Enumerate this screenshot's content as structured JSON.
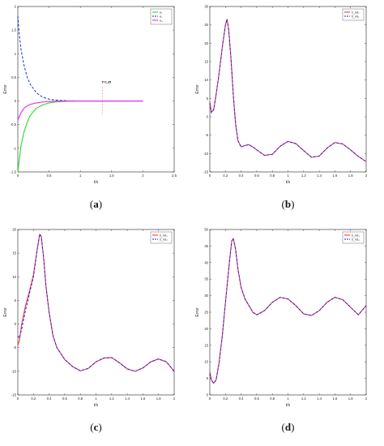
{
  "captions": [
    "a",
    "b",
    "c",
    "d"
  ],
  "chart_data": [
    {
      "type": "line",
      "panel": "a",
      "xlabel": "t/s",
      "ylabel": "Error",
      "xlim": [
        0,
        2.5
      ],
      "ylim": [
        -1.5,
        2
      ],
      "xticks": [
        "0",
        "0.5",
        "1",
        "1.5",
        "2",
        "2.5"
      ],
      "xtick_values": [
        0,
        0.5,
        1,
        1.5,
        2,
        2.5
      ],
      "yticks": [
        "-1.5",
        "-1",
        "-0.5",
        "0",
        "0.5",
        "1",
        "1.5",
        "2"
      ],
      "ytick_values": [
        -1.5,
        -1,
        -0.5,
        0,
        0.5,
        1,
        1.5,
        2
      ],
      "legend": [
        "e₁",
        "e₂",
        "e₃"
      ],
      "legend_position": "top-right",
      "annotation": {
        "text": "T=1.35",
        "x": 1.35
      },
      "series": [
        {
          "color": "#22dd22",
          "dash": "solid",
          "x": [
            0,
            0.05,
            0.1,
            0.15,
            0.2,
            0.3,
            0.4,
            0.5,
            0.6,
            0.8,
            1.0,
            1.2,
            1.5,
            2.0
          ],
          "y": [
            -1.5,
            -0.95,
            -0.65,
            -0.45,
            -0.3,
            -0.15,
            -0.08,
            -0.04,
            -0.02,
            -0.005,
            0,
            0,
            0,
            0
          ]
        },
        {
          "color": "#1530d8",
          "dash": "dashed",
          "x": [
            0,
            0.02,
            0.05,
            0.1,
            0.15,
            0.2,
            0.3,
            0.4,
            0.5,
            0.6,
            0.8,
            1.0,
            1.2,
            1.5,
            2.0
          ],
          "y": [
            1.8,
            1.45,
            1.1,
            0.75,
            0.5,
            0.35,
            0.17,
            0.08,
            0.04,
            0.02,
            0.005,
            0,
            0,
            0,
            0
          ]
        },
        {
          "color": "#ee22ee",
          "dash": "solid",
          "x": [
            0,
            0.05,
            0.1,
            0.15,
            0.2,
            0.3,
            0.4,
            0.5,
            0.6,
            0.8,
            1.0,
            1.5,
            2.0
          ],
          "y": [
            -0.4,
            -0.25,
            -0.15,
            -0.1,
            -0.07,
            -0.04,
            -0.02,
            -0.01,
            -0.005,
            0,
            0,
            0,
            0
          ]
        }
      ]
    },
    {
      "type": "line",
      "panel": "b",
      "xlabel": "t/s",
      "ylabel": "Error",
      "xlim": [
        0,
        2
      ],
      "ylim": [
        -15,
        30
      ],
      "xticks": [
        "0",
        "0.2",
        "0.4",
        "0.6",
        "0.8",
        "1",
        "1.2",
        "1.4",
        "1.6",
        "1.8",
        "2"
      ],
      "xtick_values": [
        0,
        0.2,
        0.4,
        0.6,
        0.8,
        1,
        1.2,
        1.4,
        1.6,
        1.8,
        2
      ],
      "yticks": [
        "-15",
        "-10",
        "-5",
        "0",
        "5",
        "10",
        "15",
        "20",
        "25",
        "30"
      ],
      "ytick_values": [
        -15,
        -10,
        -5,
        0,
        5,
        10,
        15,
        20,
        25,
        30
      ],
      "legend": [
        "ṡ_nd₁",
        "ṡ̂_nd₁"
      ],
      "legend_position": "top-right",
      "series": [
        {
          "color": "#ff3333",
          "dash": "solid",
          "x": [
            0,
            0.02,
            0.05,
            0.08,
            0.12,
            0.16,
            0.2,
            0.22,
            0.24,
            0.27,
            0.3,
            0.33,
            0.36,
            0.4,
            0.45,
            0.5,
            0.55,
            0.6,
            0.7,
            0.8,
            0.9,
            1.0,
            1.1,
            1.2,
            1.3,
            1.4,
            1.5,
            1.6,
            1.7,
            1.8,
            1.9,
            2.0
          ],
          "y": [
            4,
            1.2,
            2,
            6,
            12,
            19,
            25,
            26.5,
            24,
            16,
            6,
            -2,
            -6.5,
            -8.2,
            -7.8,
            -7.6,
            -8.2,
            -9,
            -10.5,
            -10.2,
            -8,
            -6.7,
            -7.3,
            -9.2,
            -11,
            -10.7,
            -8.5,
            -7,
            -7.4,
            -9,
            -10.8,
            -12.2
          ]
        },
        {
          "color": "#2222ee",
          "dash": "dashed",
          "x": [
            0,
            0.02,
            0.05,
            0.08,
            0.12,
            0.16,
            0.2,
            0.22,
            0.24,
            0.27,
            0.3,
            0.33,
            0.36,
            0.4,
            0.45,
            0.5,
            0.55,
            0.6,
            0.7,
            0.8,
            0.9,
            1.0,
            1.1,
            1.2,
            1.3,
            1.4,
            1.5,
            1.6,
            1.7,
            1.8,
            1.9,
            2.0
          ],
          "y": [
            3.8,
            1.1,
            1.9,
            6,
            12,
            19,
            25,
            26.5,
            24,
            16,
            6,
            -2,
            -6.5,
            -8.2,
            -7.8,
            -7.6,
            -8.2,
            -9,
            -10.5,
            -10.2,
            -8,
            -6.7,
            -7.3,
            -9.2,
            -11,
            -10.7,
            -8.5,
            -7,
            -7.4,
            -9,
            -10.8,
            -12.2
          ]
        }
      ]
    },
    {
      "type": "line",
      "panel": "c",
      "xlabel": "t/s",
      "ylabel": "Error",
      "xlim": [
        0,
        2
      ],
      "ylim": [
        -15,
        20
      ],
      "xticks": [
        "0",
        "0.2",
        "0.4",
        "0.6",
        "0.8",
        "1",
        "1.2",
        "1.4",
        "1.6",
        "1.8",
        "2"
      ],
      "xtick_values": [
        0,
        0.2,
        0.4,
        0.6,
        0.8,
        1,
        1.2,
        1.4,
        1.6,
        1.8,
        2
      ],
      "yticks": [
        "-15",
        "-10",
        "-5",
        "0",
        "5",
        "10",
        "15",
        "20"
      ],
      "ytick_values": [
        -15,
        -10,
        -5,
        0,
        5,
        10,
        15,
        20
      ],
      "legend": [
        "ṡ_nd₂",
        "ṡ̂_nd₂"
      ],
      "legend_position": "top-right",
      "series": [
        {
          "color": "#ff3333",
          "dash": "solid",
          "x": [
            0,
            0.02,
            0.05,
            0.1,
            0.15,
            0.2,
            0.25,
            0.28,
            0.3,
            0.33,
            0.36,
            0.4,
            0.45,
            0.5,
            0.6,
            0.7,
            0.8,
            0.9,
            1.0,
            1.1,
            1.2,
            1.3,
            1.4,
            1.5,
            1.6,
            1.7,
            1.8,
            1.9,
            2.0
          ],
          "y": [
            -4.5,
            -3.5,
            0,
            4,
            7,
            10.5,
            16,
            19,
            18.5,
            14,
            8,
            2.5,
            -2.5,
            -5,
            -7.5,
            -9,
            -9.9,
            -9.4,
            -8,
            -7.2,
            -7.1,
            -8.2,
            -9.5,
            -10,
            -9.3,
            -8,
            -7.4,
            -8,
            -10
          ]
        },
        {
          "color": "#2222ee",
          "dash": "dashed",
          "x": [
            0,
            0.02,
            0.05,
            0.1,
            0.15,
            0.2,
            0.25,
            0.28,
            0.3,
            0.33,
            0.36,
            0.4,
            0.45,
            0.5,
            0.6,
            0.7,
            0.8,
            0.9,
            1.0,
            1.1,
            1.2,
            1.3,
            1.4,
            1.5,
            1.6,
            1.7,
            1.8,
            1.9,
            2.0
          ],
          "y": [
            -2.5,
            -3,
            -1,
            3,
            6.5,
            10,
            16,
            19,
            18.5,
            14,
            8,
            2.5,
            -2.5,
            -5,
            -7.5,
            -9,
            -9.9,
            -9.4,
            -8,
            -7.2,
            -7.1,
            -8.2,
            -9.5,
            -10,
            -9.3,
            -8,
            -7.4,
            -8,
            -10
          ]
        }
      ]
    },
    {
      "type": "line",
      "panel": "d",
      "xlabel": "t/s",
      "ylabel": "Error",
      "xlim": [
        0,
        2
      ],
      "ylim": [
        0,
        50
      ],
      "xticks": [
        "0",
        "0.2",
        "0.4",
        "0.6",
        "0.8",
        "1",
        "1.2",
        "1.4",
        "1.6",
        "1.8",
        "2"
      ],
      "xtick_values": [
        0,
        0.2,
        0.4,
        0.6,
        0.8,
        1,
        1.2,
        1.4,
        1.6,
        1.8,
        2
      ],
      "yticks": [
        "0",
        "5",
        "10",
        "15",
        "20",
        "25",
        "30",
        "35",
        "40",
        "45",
        "50"
      ],
      "ytick_values": [
        0,
        5,
        10,
        15,
        20,
        25,
        30,
        35,
        40,
        45,
        50
      ],
      "legend": [
        "ṡ_nd₃",
        "ṡ̂_nd₃"
      ],
      "legend_position": "top-right",
      "series": [
        {
          "color": "#ff3333",
          "dash": "solid",
          "x": [
            0,
            0.02,
            0.05,
            0.08,
            0.12,
            0.16,
            0.2,
            0.25,
            0.28,
            0.3,
            0.33,
            0.36,
            0.4,
            0.45,
            0.5,
            0.55,
            0.6,
            0.7,
            0.8,
            0.9,
            1.0,
            1.1,
            1.2,
            1.3,
            1.4,
            1.5,
            1.6,
            1.7,
            1.8,
            1.9,
            2.0
          ],
          "y": [
            7,
            4.5,
            3.5,
            4.5,
            10,
            18,
            28,
            40,
            46.5,
            47.3,
            44,
            38,
            32.5,
            29,
            27,
            25,
            24.2,
            25.5,
            28,
            29.5,
            29,
            27,
            24.5,
            24,
            25.5,
            28,
            29.5,
            28.8,
            26.5,
            24.2,
            27
          ]
        },
        {
          "color": "#2222ee",
          "dash": "dashed",
          "x": [
            0,
            0.02,
            0.05,
            0.08,
            0.12,
            0.16,
            0.2,
            0.25,
            0.28,
            0.3,
            0.33,
            0.36,
            0.4,
            0.45,
            0.5,
            0.55,
            0.6,
            0.7,
            0.8,
            0.9,
            1.0,
            1.1,
            1.2,
            1.3,
            1.4,
            1.5,
            1.6,
            1.7,
            1.8,
            1.9,
            2.0
          ],
          "y": [
            6.5,
            4.5,
            3.5,
            4.5,
            10,
            18,
            28,
            40,
            46.5,
            47.3,
            44,
            38,
            32.5,
            29,
            27,
            25,
            24.2,
            25.5,
            28,
            29.5,
            29,
            27,
            24.5,
            24,
            25.5,
            28,
            29.5,
            28.8,
            26.5,
            24.2,
            27
          ]
        }
      ]
    }
  ]
}
